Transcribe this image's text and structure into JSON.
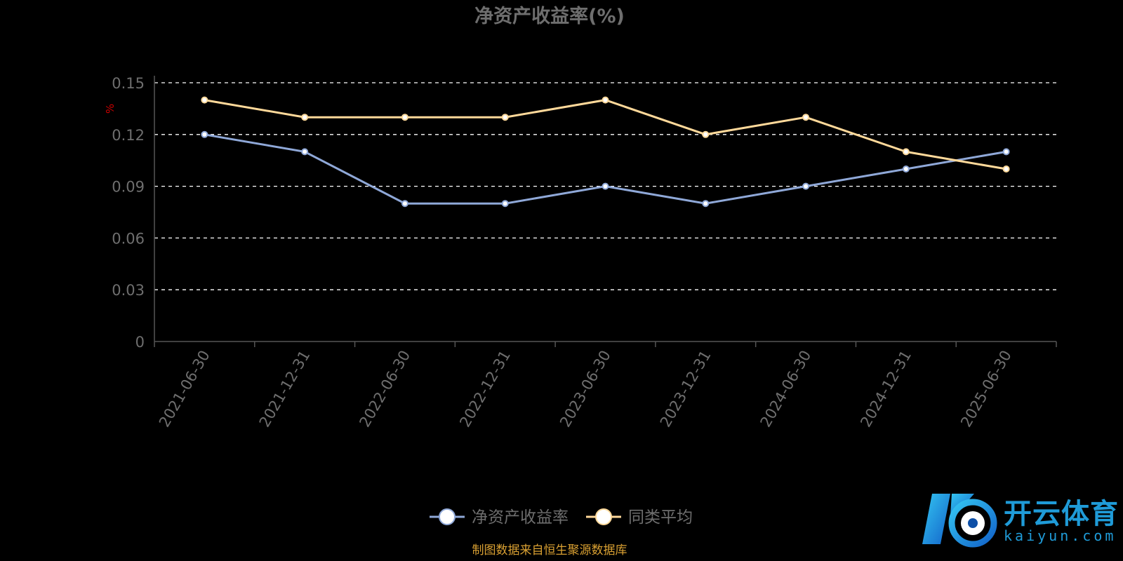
{
  "colors": {
    "background": "#000000",
    "title": "#6e6e6e",
    "axis_text": "#6e6e6e",
    "unit": "#cc0000",
    "grid": "#ffffff",
    "source": "#d9a032",
    "series_1": "#8fa8d8",
    "series_2": "#ffd99a",
    "watermark": "#1f9bd8"
  },
  "chart_data": {
    "type": "line",
    "title": "净资产收益率(%)",
    "ylabel": "%",
    "ylim": [
      0,
      0.15
    ],
    "yticks": [
      "0",
      "0.03",
      "0.06",
      "0.09",
      "0.12",
      "0.15"
    ],
    "x": [
      "2021-06-30",
      "2021-12-31",
      "2022-06-30",
      "2022-12-31",
      "2023-06-30",
      "2023-12-31",
      "2024-06-30",
      "2024-12-31",
      "2025-06-30"
    ],
    "series": [
      {
        "name": "净资产收益率",
        "values": [
          0.12,
          0.11,
          0.08,
          0.08,
          0.09,
          0.08,
          0.09,
          0.1,
          0.11
        ]
      },
      {
        "name": "同类平均",
        "values": [
          0.14,
          0.13,
          0.13,
          0.13,
          0.14,
          0.12,
          0.13,
          0.11,
          0.1
        ]
      }
    ],
    "grid": true,
    "legend_position": "bottom-center"
  },
  "source_note": "制图数据来自恒生聚源数据库",
  "watermark": {
    "name_cn": "开云体育",
    "domain": "kaiyun.com"
  }
}
